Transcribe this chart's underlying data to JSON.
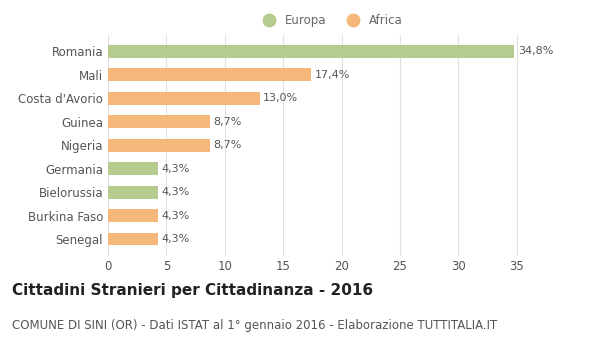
{
  "categories": [
    "Romania",
    "Mali",
    "Costa d'Avorio",
    "Guinea",
    "Nigeria",
    "Germania",
    "Bielorussia",
    "Burkina Faso",
    "Senegal"
  ],
  "values": [
    34.8,
    17.4,
    13.0,
    8.7,
    8.7,
    4.3,
    4.3,
    4.3,
    4.3
  ],
  "labels": [
    "34,8%",
    "17,4%",
    "13,0%",
    "8,7%",
    "8,7%",
    "4,3%",
    "4,3%",
    "4,3%",
    "4,3%"
  ],
  "continents": [
    "Europa",
    "Africa",
    "Africa",
    "Africa",
    "Africa",
    "Europa",
    "Europa",
    "Africa",
    "Africa"
  ],
  "color_europa": "#b5cc8e",
  "color_africa": "#f5b87a",
  "background_color": "#ffffff",
  "grid_color": "#e0e0e0",
  "title": "Cittadini Stranieri per Cittadinanza - 2016",
  "subtitle": "COMUNE DI SINI (OR) - Dati ISTAT al 1° gennaio 2016 - Elaborazione TUTTITALIA.IT",
  "xlim": [
    0,
    37
  ],
  "xticks": [
    0,
    5,
    10,
    15,
    20,
    25,
    30,
    35
  ],
  "legend_europa": "Europa",
  "legend_africa": "Africa",
  "title_fontsize": 11,
  "subtitle_fontsize": 8.5,
  "label_fontsize": 8,
  "tick_fontsize": 8.5,
  "bar_height": 0.55
}
